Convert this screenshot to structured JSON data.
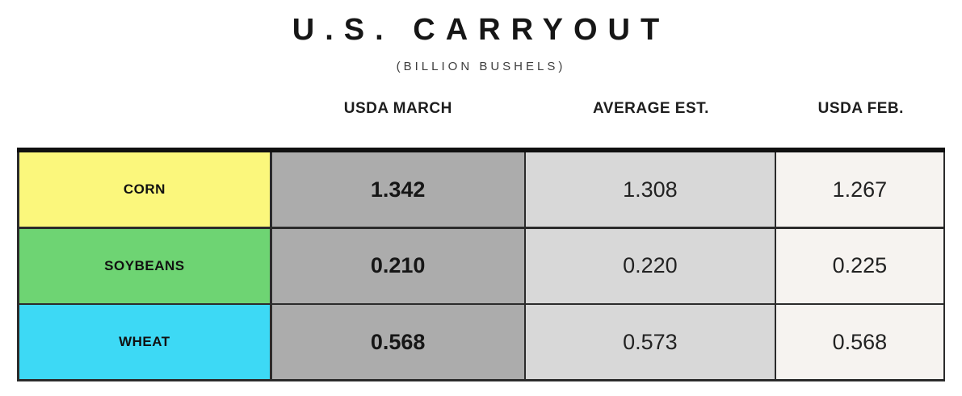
{
  "title": "U.S. CARRYOUT",
  "subtitle": "(BILLION BUSHELS)",
  "table": {
    "column_headers": [
      "USDA MARCH",
      "AVERAGE EST.",
      "USDA FEB."
    ],
    "rows": [
      {
        "label": "CORN",
        "color": "#FBF77C",
        "values": [
          "1.342",
          "1.308",
          "1.267"
        ]
      },
      {
        "label": "SOYBEANS",
        "color": "#6ED473",
        "values": [
          "0.210",
          "0.220",
          "0.225"
        ]
      },
      {
        "label": "WHEAT",
        "color": "#3DD9F5",
        "values": [
          "0.568",
          "0.573",
          "0.568"
        ]
      }
    ]
  },
  "colors": {
    "usda_march_bg": "#ACACAC",
    "average_est_bg": "#D8D8D8",
    "usda_feb_bg": "#F6F3F0",
    "border": "#2B2B2B",
    "top_border": "#101010"
  },
  "chart_data": {
    "type": "table",
    "title": "U.S. CARRYOUT",
    "subtitle": "(BILLION BUSHELS)",
    "columns": [
      "USDA MARCH",
      "AVERAGE EST.",
      "USDA FEB."
    ],
    "rows": [
      {
        "label": "CORN",
        "values": [
          1.342,
          1.308,
          1.267
        ]
      },
      {
        "label": "SOYBEANS",
        "values": [
          0.21,
          0.22,
          0.225
        ]
      },
      {
        "label": "WHEAT",
        "values": [
          0.568,
          0.573,
          0.568
        ]
      }
    ]
  }
}
